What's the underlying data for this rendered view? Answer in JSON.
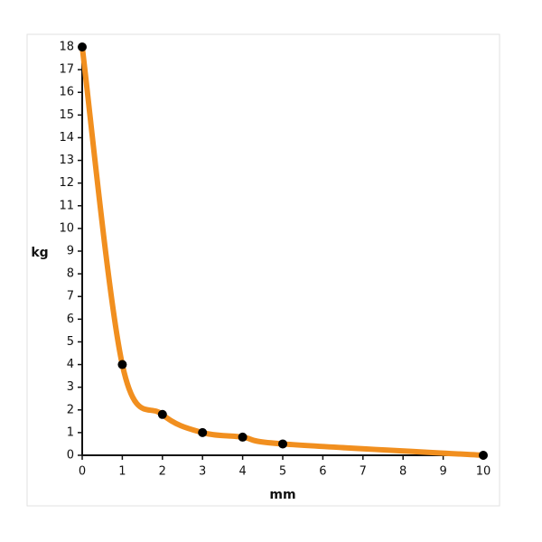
{
  "chart_data": {
    "type": "line",
    "x_label": "mm",
    "y_label": "kg",
    "x": [
      0,
      1,
      2,
      3,
      4,
      5,
      10
    ],
    "series": [
      {
        "color": "#f18f1f",
        "values": [
          18,
          4,
          1.8,
          1,
          0.8,
          0.5,
          0
        ]
      }
    ],
    "xlim": [
      0,
      10
    ],
    "ylim": [
      0,
      18
    ],
    "xticks": [
      0,
      1,
      2,
      3,
      4,
      5,
      6,
      7,
      8,
      9,
      10
    ],
    "yticks": [
      0,
      1,
      2,
      3,
      4,
      5,
      6,
      7,
      8,
      9,
      10,
      11,
      12,
      13,
      14,
      15,
      16,
      17,
      18
    ]
  }
}
